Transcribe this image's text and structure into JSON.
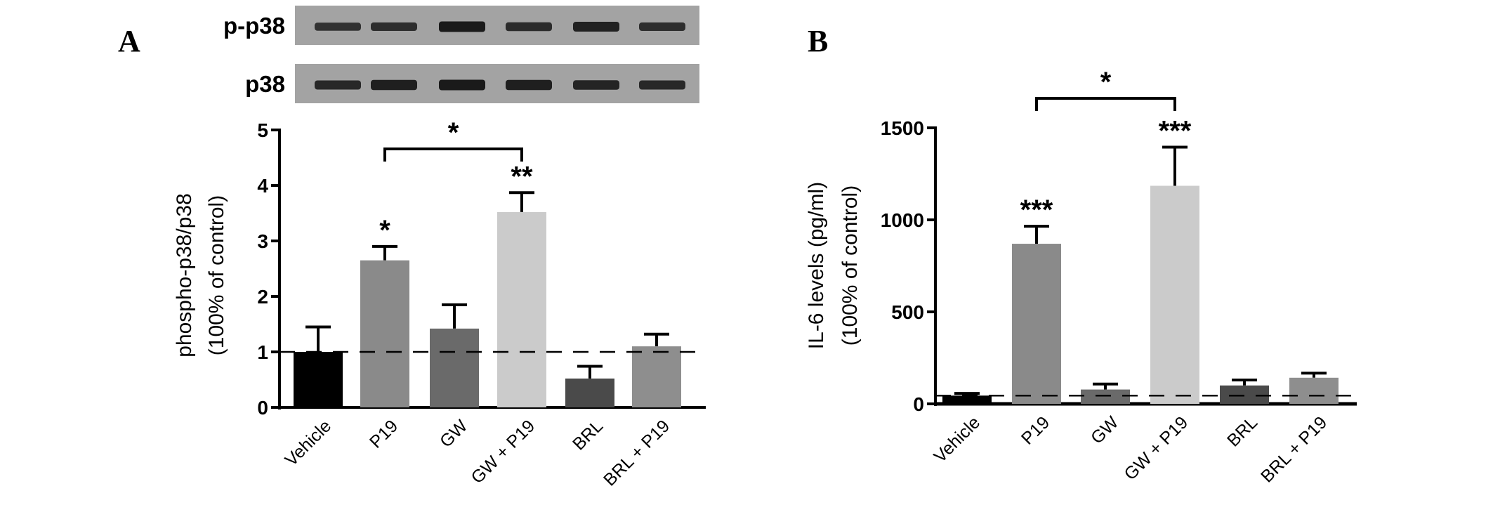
{
  "colors": {
    "bar_fills": [
      "#000000",
      "#8a8a8a",
      "#6a6a6a",
      "#cbcbcb",
      "#4a4a4a",
      "#8e8e8e"
    ],
    "axis": "#000000",
    "baseline_dash": "#000000",
    "blot_background": "#a3a3a3",
    "blot_band": "#141414"
  },
  "panel_A": {
    "letter": "A",
    "blot_rows": [
      {
        "label": "p-p38",
        "band_strengths": [
          0.55,
          0.6,
          0.9,
          0.65,
          0.8,
          0.6
        ]
      },
      {
        "label": "p38",
        "band_strengths": [
          0.7,
          0.85,
          0.9,
          0.85,
          0.75,
          0.7
        ]
      }
    ]
  },
  "panel_B": {
    "letter": "B"
  },
  "chart_data": [
    {
      "type": "bar",
      "panel": "A",
      "categories": [
        "Vehicle",
        "P19",
        "GW",
        "GW + P19",
        "BRL",
        "BRL + P19"
      ],
      "values": [
        1.0,
        2.65,
        1.42,
        3.52,
        0.52,
        1.1
      ],
      "errors": [
        0.45,
        0.25,
        0.43,
        0.35,
        0.22,
        0.22
      ],
      "significance": [
        "",
        "*",
        "",
        "**",
        "",
        ""
      ],
      "comparison": {
        "from": 1,
        "to": 3,
        "label": "*"
      },
      "baseline": 1,
      "ylabel_line1": "phospho-p38/p38",
      "ylabel_line2": "(100% of control)",
      "xlabel": "",
      "ylim": [
        0,
        5
      ],
      "yticks": [
        "0",
        "1",
        "2",
        "3",
        "4",
        "5"
      ]
    },
    {
      "type": "bar",
      "panel": "B",
      "categories": [
        "Vehicle",
        "P19",
        "GW",
        "GW + P19",
        "BRL",
        "BRL + P19"
      ],
      "values": [
        45,
        870,
        78,
        1185,
        100,
        142
      ],
      "errors": [
        12,
        95,
        30,
        210,
        30,
        25
      ],
      "significance": [
        "",
        "***",
        "",
        "***",
        "",
        ""
      ],
      "comparison": {
        "from": 1,
        "to": 3,
        "label": "*"
      },
      "baseline": 45,
      "ylabel_line1": "IL-6 levels (pg/ml)",
      "ylabel_line2": "(100% of control)",
      "xlabel": "",
      "ylim": [
        0,
        1500
      ],
      "yticks": [
        "0",
        "500",
        "1000",
        "1500"
      ]
    }
  ]
}
